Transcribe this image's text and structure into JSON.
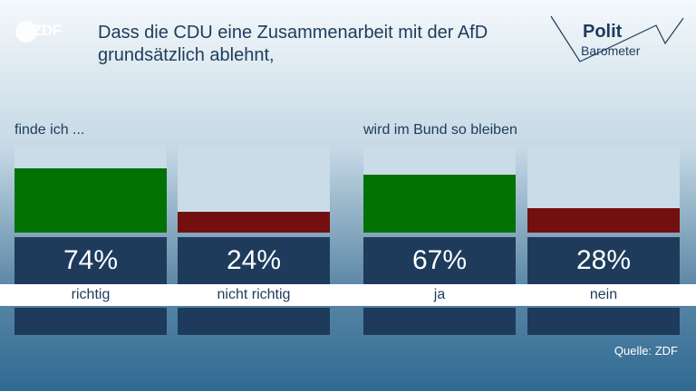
{
  "brand": {
    "logo_text": "ZDF"
  },
  "title": "Dass die CDU eine Zusammenarbeit mit der AfD grundsätzlich ablehnt,",
  "politbarometer": {
    "line1": "Polit",
    "line2": "Barometer"
  },
  "colors": {
    "yes": "#037204",
    "no": "#73100f",
    "track": "#c9dce8",
    "box": "#1e3b5c"
  },
  "chart_data": [
    {
      "type": "bar",
      "title": "finde ich ...",
      "categories": [
        "richtig",
        "nicht richtig"
      ],
      "values": [
        74,
        24
      ],
      "value_labels": [
        "74%",
        "24%"
      ],
      "ylim": [
        0,
        100
      ]
    },
    {
      "type": "bar",
      "title": "wird im Bund so bleiben",
      "categories": [
        "ja",
        "nein"
      ],
      "values": [
        67,
        28
      ],
      "value_labels": [
        "67%",
        "28%"
      ],
      "ylim": [
        0,
        100
      ]
    }
  ],
  "source": "Quelle: ZDF"
}
